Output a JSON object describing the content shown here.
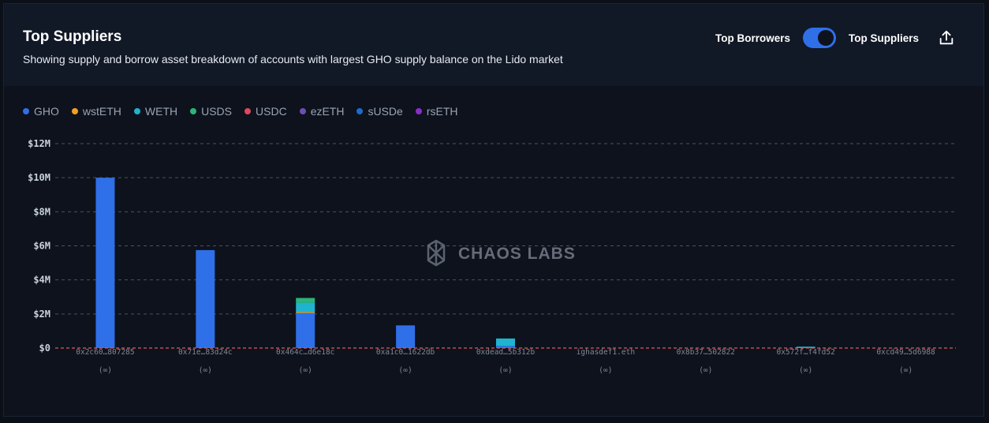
{
  "header": {
    "title": "Top Suppliers",
    "subtitle": "Showing supply and borrow asset breakdown of accounts with largest GHO supply balance on the Lido market",
    "toggle_left_label": "Top Borrowers",
    "toggle_right_label": "Top Suppliers",
    "toggle_state": "Top Suppliers",
    "export_icon": "share-upload-icon"
  },
  "watermark": "CHAOS LABS",
  "colors": {
    "GHO": "#2f6fe8",
    "wstETH": "#f0a020",
    "WETH": "#1fb3cf",
    "USDS": "#2bb57a",
    "USDC": "#e0475e",
    "ezETH": "#6a4fb0",
    "sUSDe": "#1b6ccc",
    "rsETH": "#8b2cc8"
  },
  "chart_data": {
    "type": "bar",
    "stacked": true,
    "categories": [
      "0x2c60…807285",
      "0x71e…83d24c",
      "0x464c…d6e18c",
      "0xa1c0…1622db",
      "0xdead…5b312b",
      "ighasdef1.eth",
      "0x8b37…502822",
      "0x572f…f4fd52",
      "0xcd49…5d6988"
    ],
    "sublabels": [
      "(∞)",
      "(∞)",
      "(∞)",
      "(∞)",
      "(∞)",
      "(∞)",
      "(∞)",
      "(∞)",
      "(∞)"
    ],
    "series": [
      {
        "name": "GHO",
        "values": [
          10000000,
          5750000,
          2050000,
          1330000,
          120000,
          0,
          0,
          0,
          0
        ]
      },
      {
        "name": "wstETH",
        "values": [
          0,
          0,
          60000,
          0,
          0,
          0,
          0,
          0,
          0
        ]
      },
      {
        "name": "WETH",
        "values": [
          0,
          0,
          550000,
          0,
          440000,
          0,
          0,
          80000,
          0
        ]
      },
      {
        "name": "USDS",
        "values": [
          0,
          0,
          280000,
          0,
          0,
          0,
          0,
          0,
          0
        ]
      },
      {
        "name": "USDC",
        "values": [
          0,
          0,
          0,
          0,
          0,
          0,
          0,
          0,
          0
        ]
      },
      {
        "name": "ezETH",
        "values": [
          0,
          0,
          0,
          0,
          0,
          0,
          0,
          0,
          0
        ]
      },
      {
        "name": "sUSDe",
        "values": [
          0,
          0,
          0,
          0,
          0,
          0,
          0,
          0,
          0
        ]
      },
      {
        "name": "rsETH",
        "values": [
          0,
          0,
          0,
          0,
          0,
          0,
          0,
          0,
          0
        ]
      }
    ],
    "yticks": [
      "$0",
      "$2M",
      "$4M",
      "$6M",
      "$8M",
      "$10M",
      "$12M"
    ],
    "ylim": [
      0,
      12000000
    ],
    "grid": true,
    "legend_position": "top-left"
  }
}
